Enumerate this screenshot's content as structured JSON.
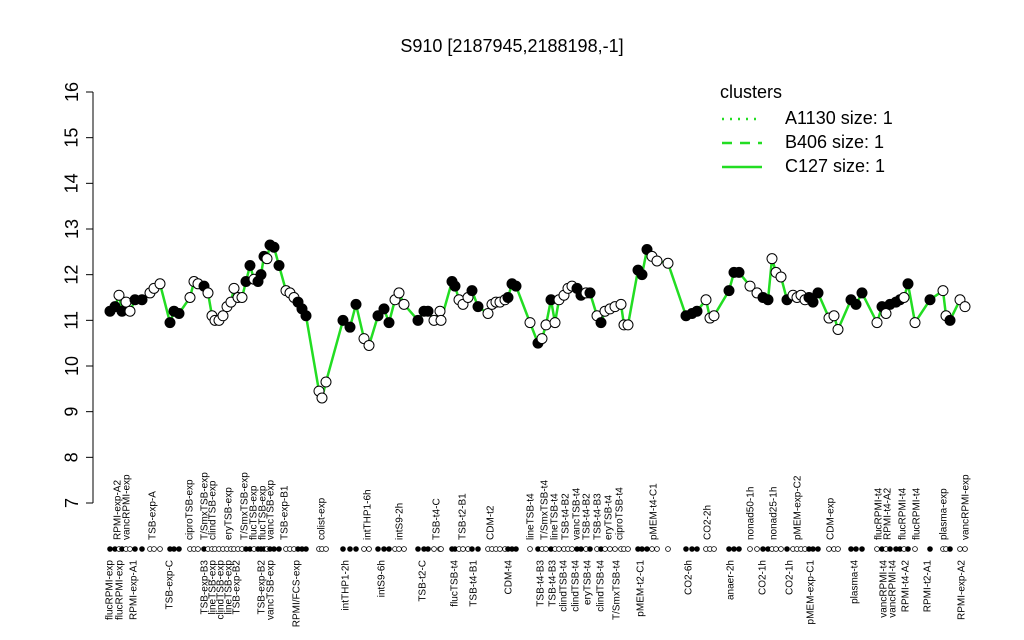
{
  "chart_data": {
    "type": "line",
    "title": "S910 [2187945,2188198,-1]",
    "ylim": [
      7,
      16
    ],
    "yticks": [
      7,
      8,
      9,
      10,
      11,
      12,
      13,
      14,
      15,
      16
    ],
    "xlim": [
      0,
      176
    ],
    "color": "#22dd22",
    "legend_title": "clusters",
    "legend": [
      {
        "name": "A1130 size: 1",
        "dash": "dotted"
      },
      {
        "name": "B406 size: 1",
        "dash": "dashed"
      },
      {
        "name": "C127 size: 1",
        "dash": "solid"
      }
    ],
    "series": [
      {
        "x": [
          2,
          3,
          3.8,
          4.4,
          5.2,
          6,
          7,
          8.4,
          10,
          10.8,
          12,
          14,
          14.8,
          15.8,
          18,
          18.8,
          19.6,
          20.8,
          21.6,
          22.4,
          23,
          23.8,
          24.6,
          25.4,
          26.2,
          26.8,
          27.6,
          28.4,
          29.2,
          30,
          30.8,
          31.6,
          32.2,
          32.8,
          33.4,
          34,
          34.8,
          35.8,
          37.2,
          38,
          38.8,
          39.6,
          40.4,
          41.2,
          43.8,
          44.4,
          45.2,
          48.6,
          50,
          51.2,
          52.8,
          53.8,
          55.6,
          56.8,
          57.8,
          59,
          59.8,
          60.8,
          63.6,
          64.8,
          65.6,
          66.8,
          68,
          68.2,
          70.4,
          71,
          71.8,
          72.6,
          73.6,
          74.4,
          75.6,
          77.6,
          78.4,
          79.2,
          80,
          81,
          81.6,
          82.4,
          83.2,
          86,
          87.6,
          88.4,
          89.2,
          90.2,
          91,
          91.8,
          92.8,
          93.6,
          94.4,
          95.4,
          96.2,
          97.2,
          98,
          99.4,
          100.2,
          101,
          102,
          103,
          104.2,
          104.8,
          105.6,
          107.6,
          108.4,
          109.4,
          110.4,
          111.4,
          113.6,
          117.2,
          118.4,
          119.4,
          121.2,
          122,
          122.8,
          125.8,
          126.8,
          127.8,
          130,
          131.4,
          132.6,
          133.6,
          134.4,
          135.2,
          136.2,
          137.4,
          138.6,
          139.4,
          140.2,
          141,
          141.8,
          142.6,
          143.6,
          145.8,
          146.8,
          147.6,
          150.2,
          151.2,
          152.4,
          155.4,
          156.4,
          157.2,
          158,
          159.2,
          160,
          160.8,
          161.6,
          163,
          166,
          168.6,
          169.2,
          170,
          172,
          173
        ],
        "values": [
          11.2,
          11.3,
          11.55,
          11.2,
          11.4,
          11.2,
          11.45,
          11.45,
          11.6,
          11.7,
          11.8,
          10.95,
          11.2,
          11.15,
          11.5,
          11.85,
          11.8,
          11.75,
          11.6,
          11.1,
          11.0,
          11.0,
          11.1,
          11.3,
          11.4,
          11.7,
          11.5,
          11.5,
          11.85,
          12.2,
          11.9,
          11.85,
          12.0,
          12.4,
          12.35,
          12.65,
          12.6,
          12.2,
          11.65,
          11.6,
          11.5,
          11.4,
          11.25,
          11.1,
          9.45,
          9.3,
          9.65,
          11.0,
          10.85,
          11.35,
          10.6,
          10.45,
          11.1,
          11.25,
          10.95,
          11.45,
          11.6,
          11.35,
          11.0,
          11.2,
          11.2,
          11.0,
          11.2,
          11.0,
          11.85,
          11.75,
          11.45,
          11.35,
          11.5,
          11.65,
          11.3,
          11.15,
          11.35,
          11.4,
          11.4,
          11.45,
          11.5,
          11.8,
          11.75,
          10.95,
          10.5,
          10.6,
          10.9,
          11.45,
          10.95,
          11.45,
          11.55,
          11.7,
          11.75,
          11.7,
          11.55,
          11.6,
          11.6,
          11.1,
          10.95,
          11.2,
          11.25,
          11.3,
          11.35,
          10.9,
          10.9,
          12.1,
          12.0,
          12.55,
          12.4,
          12.3,
          12.25,
          11.1,
          11.15,
          11.2,
          11.45,
          11.05,
          11.1,
          11.65,
          12.05,
          12.05,
          11.75,
          11.6,
          11.5,
          11.45,
          12.35,
          12.05,
          11.95,
          11.45,
          11.55,
          11.5,
          11.55,
          11.45,
          11.5,
          11.4,
          11.6,
          11.05,
          11.1,
          10.8,
          11.45,
          11.35,
          11.6,
          10.95,
          11.3,
          11.15,
          11.35,
          11.4,
          11.45,
          11.5,
          11.8,
          10.95,
          11.45,
          11.65,
          11.1,
          11.0,
          11.45,
          11.3
        ],
        "filled": [
          true,
          true,
          false,
          true,
          false,
          false,
          true,
          true,
          false,
          false,
          false,
          true,
          true,
          true,
          false,
          false,
          false,
          true,
          false,
          false,
          false,
          false,
          false,
          false,
          false,
          false,
          false,
          false,
          true,
          true,
          false,
          true,
          true,
          true,
          false,
          true,
          true,
          true,
          false,
          false,
          false,
          true,
          true,
          true,
          false,
          false,
          false,
          true,
          true,
          true,
          false,
          false,
          true,
          true,
          true,
          false,
          false,
          false,
          true,
          true,
          true,
          false,
          false,
          false,
          true,
          true,
          false,
          false,
          false,
          true,
          true,
          false,
          false,
          false,
          false,
          false,
          true,
          true,
          true,
          false,
          true,
          false,
          false,
          true,
          false,
          false,
          false,
          false,
          false,
          true,
          true,
          false,
          true,
          false,
          true,
          false,
          false,
          false,
          false,
          false,
          false,
          true,
          true,
          true,
          false,
          false,
          false,
          true,
          true,
          true,
          false,
          false,
          false,
          true,
          true,
          true,
          false,
          false,
          true,
          true,
          false,
          false,
          false,
          true,
          false,
          false,
          false,
          false,
          true,
          true,
          true,
          false,
          false,
          false,
          true,
          true,
          true,
          false,
          true,
          false,
          true,
          true,
          true,
          false,
          true,
          false,
          true,
          false,
          false,
          true,
          false
        ]
      }
    ],
    "labels_top": [
      {
        "text": "RPMI-exp-A2",
        "x": 3.6
      },
      {
        "text": "vancRPMI-exp",
        "x": 5.4
      },
      {
        "text": "TSB-exp-A",
        "x": 10.6
      },
      {
        "text": "ciproTSB-exp",
        "x": 18
      },
      {
        "text": "T/SmxTSB-exp",
        "x": 21
      },
      {
        "text": "clindTSB-exp",
        "x": 22.6
      },
      {
        "text": "eryTSB-exp",
        "x": 25.8
      },
      {
        "text": "T/SmxTSB-exp",
        "x": 29
      },
      {
        "text": "flucTSB-exp",
        "x": 30.8
      },
      {
        "text": "flucTSB-exp",
        "x": 32.6
      },
      {
        "text": "vancTSB-exp",
        "x": 34.2
      },
      {
        "text": "TSB-exp-B1",
        "x": 37
      },
      {
        "text": "colist-exp",
        "x": 44.4
      },
      {
        "text": "intTHP1-6h",
        "x": 53.6
      },
      {
        "text": "intS9-2h",
        "x": 60
      },
      {
        "text": "TSB-t4-C",
        "x": 67.4
      },
      {
        "text": "TSB-t2-B1",
        "x": 72.6
      },
      {
        "text": "CDM-t2",
        "x": 78.2
      },
      {
        "text": "lineTSB-t4",
        "x": 86.2
      },
      {
        "text": "T/SmxTSB-t4",
        "x": 89
      },
      {
        "text": "lineTSB-t4",
        "x": 91
      },
      {
        "text": "TSB-t4-B2",
        "x": 93.2
      },
      {
        "text": "vancTSB-t4",
        "x": 95.4
      },
      {
        "text": "TSB-t4-B2",
        "x": 97.4
      },
      {
        "text": "TSB-t4-B3",
        "x": 99.6
      },
      {
        "text": "eryTSB-t4",
        "x": 101.8
      },
      {
        "text": "ciproTSB-t4",
        "x": 104
      },
      {
        "text": "pMEM-t4-C1",
        "x": 110.8
      },
      {
        "text": "CO2-2h",
        "x": 121.6
      },
      {
        "text": "nonad50-1h",
        "x": 130.2
      },
      {
        "text": "nonad25-1h",
        "x": 134.8
      },
      {
        "text": "pMEM-exp-C2",
        "x": 139.6
      },
      {
        "text": "CDM-exp",
        "x": 146.2
      },
      {
        "text": "flucRPMI-t4",
        "x": 155.8
      },
      {
        "text": "RPMI-t4-A2",
        "x": 157.6
      },
      {
        "text": "flucRPMI-t4",
        "x": 160.6
      },
      {
        "text": "flucRPMI-t4",
        "x": 163.4
      },
      {
        "text": "plasma-exp",
        "x": 168.8
      },
      {
        "text": "vancRPMI-exp",
        "x": 173.2
      }
    ],
    "labels_bottom": [
      {
        "text": "flucRPMI-exp",
        "x": 2
      },
      {
        "text": "flucRPMI-exp",
        "x": 4
      },
      {
        "text": "RPMI-exp-A1",
        "x": 6.8
      },
      {
        "text": "TSB-exp-C",
        "x": 14
      },
      {
        "text": "TSB-exp-B3",
        "x": 21
      },
      {
        "text": "lineTSB-exp",
        "x": 22.6
      },
      {
        "text": "clindTSB-exp",
        "x": 24.2
      },
      {
        "text": "lineTSB-exp",
        "x": 25.8
      },
      {
        "text": "TSB-exp-B2",
        "x": 27.4
      },
      {
        "text": "TSB-exp-B2",
        "x": 32.4
      },
      {
        "text": "vancTSB-exp",
        "x": 34.2
      },
      {
        "text": "RPMI/FCS-exp",
        "x": 39.4
      },
      {
        "text": "intTHP1-2h",
        "x": 49.2
      },
      {
        "text": "intS9-6h",
        "x": 56.4
      },
      {
        "text": "TSB-t2-C",
        "x": 64.6
      },
      {
        "text": "flucTSB-t4",
        "x": 71
      },
      {
        "text": "TSB-t4-B1",
        "x": 74.8
      },
      {
        "text": "CDM-t4",
        "x": 81.8
      },
      {
        "text": "TSB-t4-B3",
        "x": 88.2
      },
      {
        "text": "TSB-t4-B3",
        "x": 90.6
      },
      {
        "text": "clindTSB-t4",
        "x": 92.8
      },
      {
        "text": "clindTSB-t4",
        "x": 95.2
      },
      {
        "text": "eryTSB-t4",
        "x": 97.6
      },
      {
        "text": "clindTSB-t4",
        "x": 100.2
      },
      {
        "text": "T/SmxTSB-t4",
        "x": 103.4
      },
      {
        "text": "pMEM-t2-C1",
        "x": 108.2
      },
      {
        "text": "CO2-6h",
        "x": 117.8
      },
      {
        "text": "anaer-2h",
        "x": 126.2
      },
      {
        "text": "CO2-1h",
        "x": 132.6
      },
      {
        "text": "CO2-1h",
        "x": 138
      },
      {
        "text": "pMEM-exp-C1",
        "x": 142.2
      },
      {
        "text": "plasma-t4",
        "x": 151
      },
      {
        "text": "vancRPMI-t4",
        "x": 156.8
      },
      {
        "text": "vancRPMI-t4",
        "x": 158.6
      },
      {
        "text": "RPMI-t4-A2",
        "x": 161.2
      },
      {
        "text": "RPMI-t2-A1",
        "x": 165.6
      },
      {
        "text": "RPMI-exp-A2",
        "x": 172.4
      }
    ]
  }
}
